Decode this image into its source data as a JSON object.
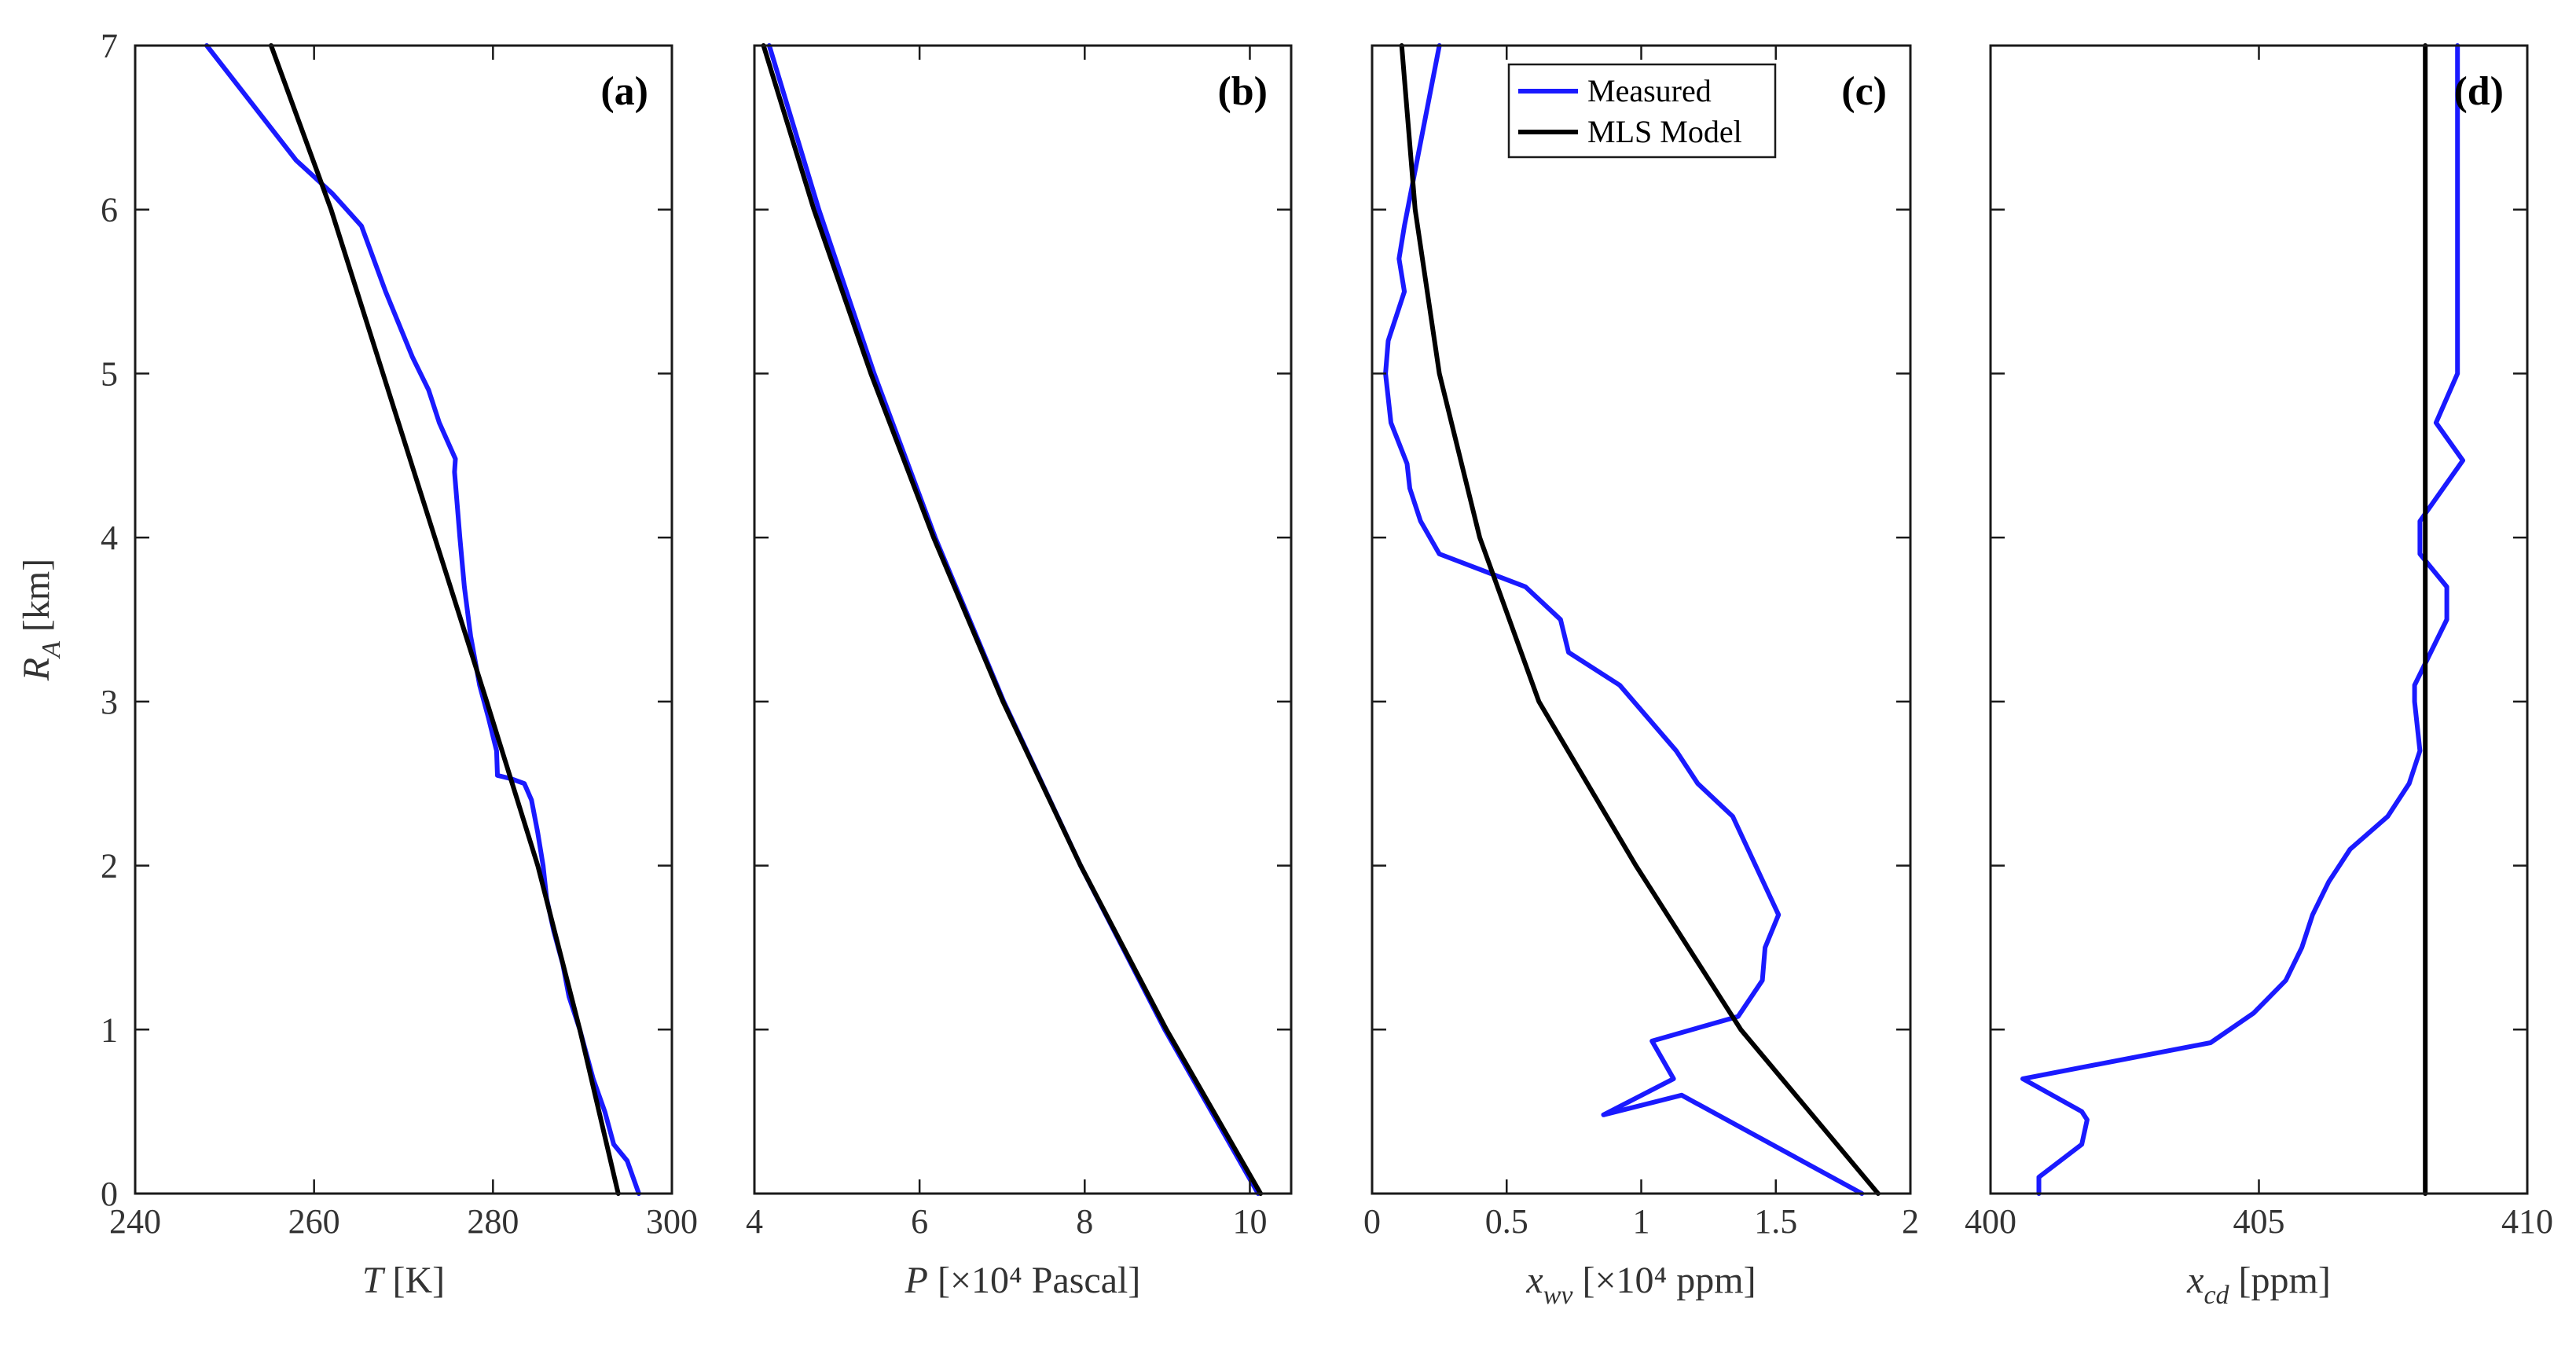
{
  "chart_data": [
    {
      "type": "line",
      "panel_label": "(a)",
      "xlabel_main": "T",
      "xlabel_sub": "",
      "xlabel_unit": " [K]",
      "ylabel_main": "R",
      "ylabel_sub": "A",
      "ylabel_unit": " [km]",
      "xlim": [
        240,
        300
      ],
      "ylim": [
        0,
        7
      ],
      "xticks": [
        240,
        260,
        280,
        300
      ],
      "xtick_labels": [
        "240",
        "260",
        "280",
        "300"
      ],
      "yticks": [
        0,
        1,
        2,
        3,
        4,
        5,
        6,
        7
      ],
      "ytick_labels": [
        "0",
        "1",
        "2",
        "3",
        "4",
        "5",
        "6",
        "7"
      ],
      "series": [
        {
          "name": "Measured",
          "color": "#1a1aff",
          "x": [
            296.3,
            295.0,
            293.5,
            292.5,
            291.2,
            289.7,
            288.5,
            287.8,
            286.8,
            286.0,
            285.6,
            285.0,
            284.3,
            283.5,
            282.0,
            280.5,
            280.4,
            279.5,
            278.5,
            277.5,
            276.8,
            276.3,
            276.0,
            275.7,
            275.8,
            274.0,
            272.8,
            271.0,
            268.0,
            265.3,
            262.0,
            258.0,
            248.0
          ],
          "y": [
            0,
            0.2,
            0.3,
            0.5,
            0.7,
            1.0,
            1.2,
            1.4,
            1.6,
            1.8,
            2.0,
            2.2,
            2.4,
            2.5,
            2.53,
            2.55,
            2.7,
            2.9,
            3.1,
            3.4,
            3.7,
            4.0,
            4.2,
            4.4,
            4.48,
            4.7,
            4.9,
            5.1,
            5.5,
            5.9,
            6.1,
            6.3,
            7.0
          ]
        },
        {
          "name": "MLS Model",
          "color": "#000000",
          "x": [
            294.0,
            289.7,
            285.0,
            279.3,
            273.5,
            267.7,
            261.9,
            255.2
          ],
          "y": [
            0,
            1,
            2,
            3,
            4,
            5,
            6,
            7
          ]
        }
      ]
    },
    {
      "type": "line",
      "panel_label": "(b)",
      "xlabel_main": "P",
      "xlabel_sub": "",
      "xlabel_unit": " [×10⁴ Pascal]",
      "xlim": [
        4,
        10.5
      ],
      "ylim": [
        0,
        7
      ],
      "xticks": [
        4,
        6,
        8,
        10
      ],
      "xtick_labels": [
        "4",
        "6",
        "8",
        "10"
      ],
      "yticks": [
        0,
        1,
        2,
        3,
        4,
        5,
        6,
        7
      ],
      "series": [
        {
          "name": "Measured",
          "color": "#1a1aff",
          "x": [
            10.1,
            8.97,
            7.95,
            7.02,
            6.19,
            5.45,
            4.78,
            4.18
          ],
          "y": [
            0,
            1,
            2,
            3,
            4,
            5,
            6,
            7
          ]
        },
        {
          "name": "MLS Model",
          "color": "#000000",
          "x": [
            10.13,
            8.99,
            7.95,
            7.01,
            6.17,
            5.41,
            4.72,
            4.11
          ],
          "y": [
            0,
            1,
            2,
            3,
            4,
            5,
            6,
            7
          ]
        }
      ]
    },
    {
      "type": "line",
      "panel_label": "(c)",
      "xlabel_main": "x",
      "xlabel_sub": "wv",
      "xlabel_unit": " [×10⁴ ppm]",
      "xlim": [
        0,
        2
      ],
      "ylim": [
        0,
        7
      ],
      "xticks": [
        0,
        0.5,
        1,
        1.5,
        2
      ],
      "xtick_labels": [
        "0",
        "0.5",
        "1",
        "1.5",
        "2"
      ],
      "yticks": [
        0,
        1,
        2,
        3,
        4,
        5,
        6,
        7
      ],
      "legend": [
        "Measured",
        "MLS Model"
      ],
      "legend_position": "top",
      "series": [
        {
          "name": "Measured",
          "color": "#1a1aff",
          "x": [
            1.82,
            1.15,
            0.86,
            1.12,
            1.04,
            1.36,
            1.45,
            1.46,
            1.51,
            1.34,
            1.21,
            1.13,
            0.92,
            0.73,
            0.7,
            0.57,
            0.25,
            0.18,
            0.14,
            0.13,
            0.07,
            0.05,
            0.06,
            0.12,
            0.1,
            0.12,
            0.25
          ],
          "y": [
            0,
            0.6,
            0.48,
            0.7,
            0.93,
            1.08,
            1.3,
            1.5,
            1.7,
            2.3,
            2.5,
            2.7,
            3.1,
            3.3,
            3.5,
            3.7,
            3.9,
            4.1,
            4.3,
            4.45,
            4.7,
            5.0,
            5.2,
            5.5,
            5.7,
            5.9,
            7.0
          ]
        },
        {
          "name": "MLS Model",
          "color": "#000000",
          "x": [
            1.88,
            1.37,
            0.98,
            0.62,
            0.4,
            0.25,
            0.16,
            0.11
          ],
          "y": [
            0,
            1,
            2,
            3,
            4,
            5,
            6,
            7
          ]
        }
      ]
    },
    {
      "type": "line",
      "panel_label": "(d)",
      "xlabel_main": "x",
      "xlabel_sub": "cd",
      "xlabel_unit": " [ppm]",
      "xlim": [
        400,
        410
      ],
      "ylim": [
        0,
        7
      ],
      "xticks": [
        400,
        405,
        410
      ],
      "xtick_labels": [
        "400",
        "405",
        "410"
      ],
      "yticks": [
        0,
        1,
        2,
        3,
        4,
        5,
        6,
        7
      ],
      "series": [
        {
          "name": "Measured",
          "color": "#1a1aff",
          "x": [
            400.9,
            400.9,
            401.7,
            401.8,
            401.7,
            400.6,
            404.1,
            404.9,
            405.5,
            405.8,
            406.0,
            406.3,
            406.5,
            406.7,
            407.4,
            407.8,
            408.0,
            407.9,
            407.9,
            408.5,
            408.5,
            408.0,
            408.0,
            408.8,
            408.3,
            408.7,
            408.7,
            408.7,
            408.7,
            408.7
          ],
          "y": [
            0,
            0.1,
            0.3,
            0.45,
            0.5,
            0.7,
            0.92,
            1.1,
            1.3,
            1.5,
            1.7,
            1.9,
            2.0,
            2.1,
            2.3,
            2.5,
            2.7,
            3.0,
            3.1,
            3.5,
            3.7,
            3.9,
            4.1,
            4.47,
            4.7,
            5.0,
            5.5,
            5.9,
            6.1,
            7.0
          ]
        },
        {
          "name": "MLS Model",
          "color": "#000000",
          "x": [
            408.1,
            408.1
          ],
          "y": [
            0,
            7
          ]
        }
      ]
    }
  ]
}
